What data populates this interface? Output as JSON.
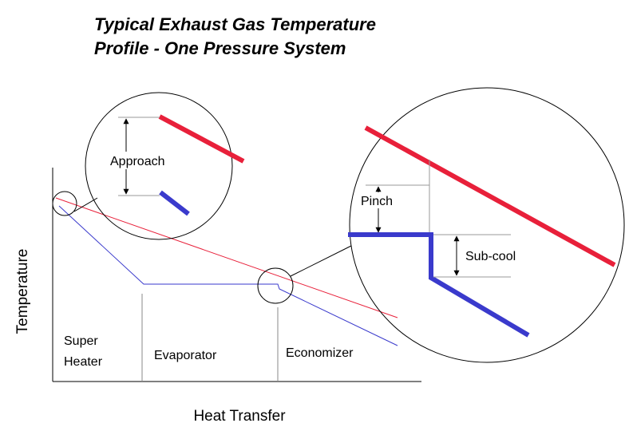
{
  "title": {
    "line1": "Typical Exhaust Gas Temperature",
    "line2": "Profile - One Pressure System"
  },
  "axes": {
    "y_label": "Temperature",
    "x_label": "Heat Transfer"
  },
  "sections": {
    "super_heater": {
      "line1": "Super",
      "line2": "Heater"
    },
    "evaporator": "Evaporator",
    "economizer": "Economizer"
  },
  "callouts": {
    "approach": "Approach",
    "pinch": "Pinch",
    "sub_cool": "Sub-cool"
  }
}
